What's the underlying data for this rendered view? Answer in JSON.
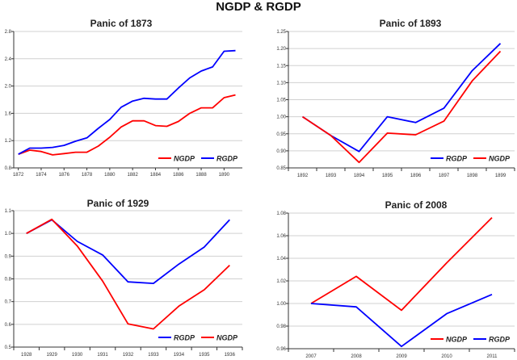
{
  "chart_data": {
    "title": "NGDP & RGDP",
    "colors": {
      "NGDP": "#ff0000",
      "RGDP": "#0000ff"
    },
    "charts": [
      {
        "type": "line",
        "title": "Panic of 1873",
        "x_type": "numeric",
        "x": [
          1872,
          1873,
          1874,
          1875,
          1876,
          1877,
          1878,
          1879,
          1880,
          1881,
          1882,
          1883,
          1884,
          1885,
          1886,
          1887,
          1888,
          1889,
          1890,
          1891
        ],
        "xlim": [
          1871.6,
          1891.6
        ],
        "x_ticks": [
          1872,
          1874,
          1876,
          1878,
          1880,
          1882,
          1884,
          1886,
          1888,
          1890
        ],
        "ylim": [
          0.8,
          2.8
        ],
        "y_ticks": [
          "0.8",
          "1.2",
          "1.6",
          "2.0",
          "2.4",
          "2.8"
        ],
        "grid": true,
        "legend": "bottom-right",
        "series": [
          {
            "name": "NGDP",
            "values": [
              1.0,
              1.06,
              1.04,
              0.99,
              1.01,
              1.03,
              1.03,
              1.12,
              1.25,
              1.4,
              1.49,
              1.49,
              1.42,
              1.41,
              1.48,
              1.6,
              1.68,
              1.68,
              1.83,
              1.87
            ]
          },
          {
            "name": "RGDP",
            "values": [
              1.0,
              1.09,
              1.09,
              1.1,
              1.13,
              1.19,
              1.24,
              1.38,
              1.51,
              1.69,
              1.78,
              1.82,
              1.81,
              1.81,
              1.97,
              2.12,
              2.22,
              2.28,
              2.51,
              2.52
            ]
          }
        ]
      },
      {
        "type": "line",
        "title": "Panic of 1893",
        "x_type": "category",
        "categories": [
          "1892",
          "1893",
          "1894",
          "1895",
          "1896",
          "1897",
          "1898",
          "1899"
        ],
        "ylim": [
          0.85,
          1.25
        ],
        "y_ticks": [
          "0.85",
          "0.90",
          "0.95",
          "1.00",
          "1.05",
          "1.10",
          "1.15",
          "1.20",
          "1.25"
        ],
        "grid": true,
        "legend": "bottom-right",
        "series": [
          {
            "name": "RGDP",
            "values": [
              1.0,
              0.945,
              0.898,
              1.0,
              0.983,
              1.025,
              1.135,
              1.215
            ]
          },
          {
            "name": "NGDP",
            "values": [
              1.0,
              0.945,
              0.866,
              0.952,
              0.947,
              0.987,
              1.105,
              1.192
            ]
          }
        ]
      },
      {
        "type": "line",
        "title": "Panic of 1929",
        "x_type": "category",
        "categories": [
          "1928",
          "1929",
          "1930",
          "1931",
          "1932",
          "1933",
          "1934",
          "1935",
          "1936"
        ],
        "ylim": [
          0.5,
          1.1
        ],
        "y_ticks": [
          "0.5",
          "0.6",
          "0.7",
          "0.8",
          "0.9",
          "1.0",
          "1.1"
        ],
        "grid": true,
        "legend": "bottom-right",
        "series": [
          {
            "name": "RGDP",
            "values": [
              1.0,
              1.06,
              0.965,
              0.905,
              0.787,
              0.78,
              0.865,
              0.94,
              1.06
            ]
          },
          {
            "name": "NGDP",
            "values": [
              1.0,
              1.062,
              0.945,
              0.79,
              0.602,
              0.58,
              0.68,
              0.752,
              0.86
            ]
          }
        ]
      },
      {
        "type": "line",
        "title": "Panic of 2008",
        "x_type": "category",
        "categories": [
          "2007",
          "2008",
          "2009",
          "2010",
          "2011"
        ],
        "ylim": [
          0.96,
          1.08
        ],
        "y_ticks": [
          "0.96",
          "0.98",
          "1.00",
          "1.02",
          "1.04",
          "1.06",
          "1.08"
        ],
        "grid": true,
        "legend": "bottom-right",
        "series": [
          {
            "name": "NGDP",
            "values": [
              1.0,
              1.024,
              0.994,
              1.036,
              1.076
            ]
          },
          {
            "name": "RGDP",
            "values": [
              1.0,
              0.997,
              0.962,
              0.991,
              1.008
            ]
          }
        ]
      }
    ]
  }
}
